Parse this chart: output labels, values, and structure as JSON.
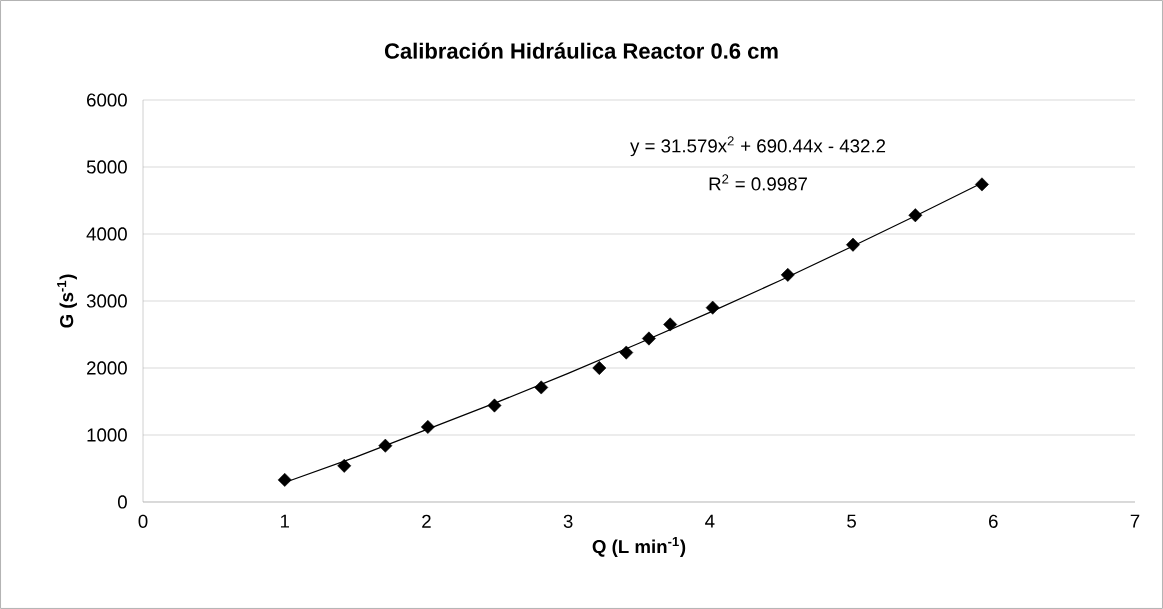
{
  "chart_data": {
    "type": "scatter",
    "title": "Calibración Hidráulica Reactor 0.6 cm",
    "xlabel": "Q (L min$^{-1}$)",
    "ylabel": "G (s$^{-1}$)",
    "annotations": [
      "y = 31.579x$^{2}$ + 690.44x - 432.2",
      "R$^{2}$ = 0.9987"
    ],
    "xlim": [
      0,
      7
    ],
    "xticks": [
      0,
      1,
      2,
      3,
      4,
      5,
      6,
      7
    ],
    "ylim": [
      0,
      6000
    ],
    "yticks": [
      0,
      1000,
      2000,
      3000,
      4000,
      5000,
      6000
    ],
    "grid": "y",
    "marker": "diamond",
    "series": [
      {
        "color": "#000000",
        "x": [
          1.0,
          1.42,
          1.71,
          2.01,
          2.48,
          2.81,
          3.22,
          3.41,
          3.57,
          3.72,
          4.02,
          4.55,
          5.01,
          5.45,
          5.92
        ],
        "values": [
          330,
          540,
          840,
          1120,
          1440,
          1710,
          2000,
          2230,
          2440,
          2650,
          2900,
          3390,
          3840,
          4280,
          4740
        ]
      },
      {
        "type": "line",
        "color": "#000000",
        "marker": "none",
        "line_style": "solid",
        "x": [
          1.0,
          1.5,
          2.0,
          2.5,
          3.0,
          3.5,
          4.0,
          4.5,
          5.0,
          5.5,
          5.92
        ],
        "values": [
          290,
          670,
          1080,
          1490,
          1920,
          2370,
          2830,
          3310,
          3810,
          4320,
          4760
        ]
      }
    ]
  }
}
